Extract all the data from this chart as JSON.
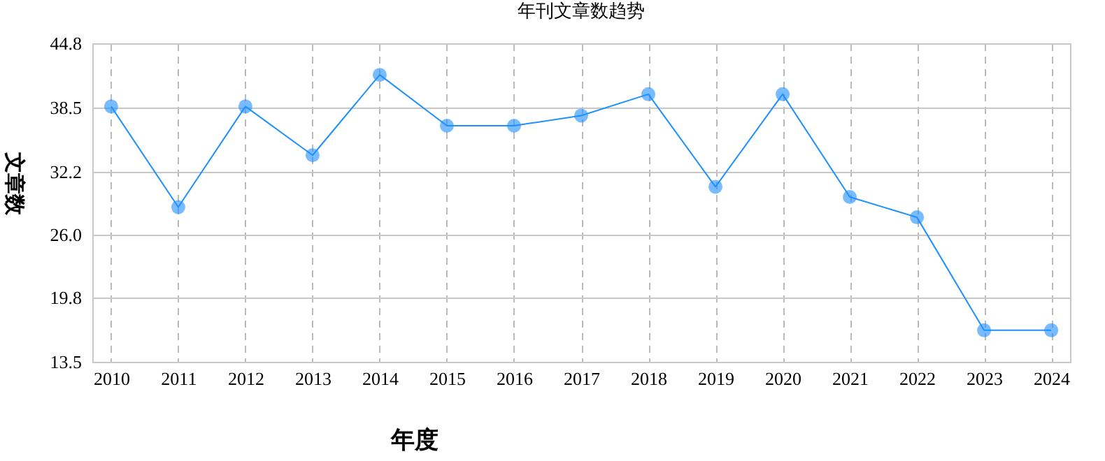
{
  "chart_data": {
    "type": "line",
    "title": "年刊文章数趋势",
    "xlabel": "年度",
    "ylabel": "文章数",
    "categories": [
      "2010",
      "2011",
      "2012",
      "2013",
      "2014",
      "2015",
      "2016",
      "2017",
      "2018",
      "2019",
      "2020",
      "2021",
      "2022",
      "2023",
      "2024"
    ],
    "series": [
      {
        "color": "#1e90ff",
        "values": [
          38.6,
          28.7,
          38.6,
          33.8,
          41.7,
          36.7,
          36.7,
          37.7,
          39.8,
          30.7,
          39.8,
          29.7,
          27.7,
          16.6,
          16.6
        ]
      }
    ],
    "ylim": [
      13.5,
      44.8
    ],
    "yticks": [
      {
        "value": 13.5,
        "label": "13.5"
      },
      19.8,
      {
        "value": 26,
        "label": "26.0"
      },
      32.2,
      38.5,
      44.8
    ],
    "grid": true,
    "marker": "circle",
    "legend": false
  }
}
